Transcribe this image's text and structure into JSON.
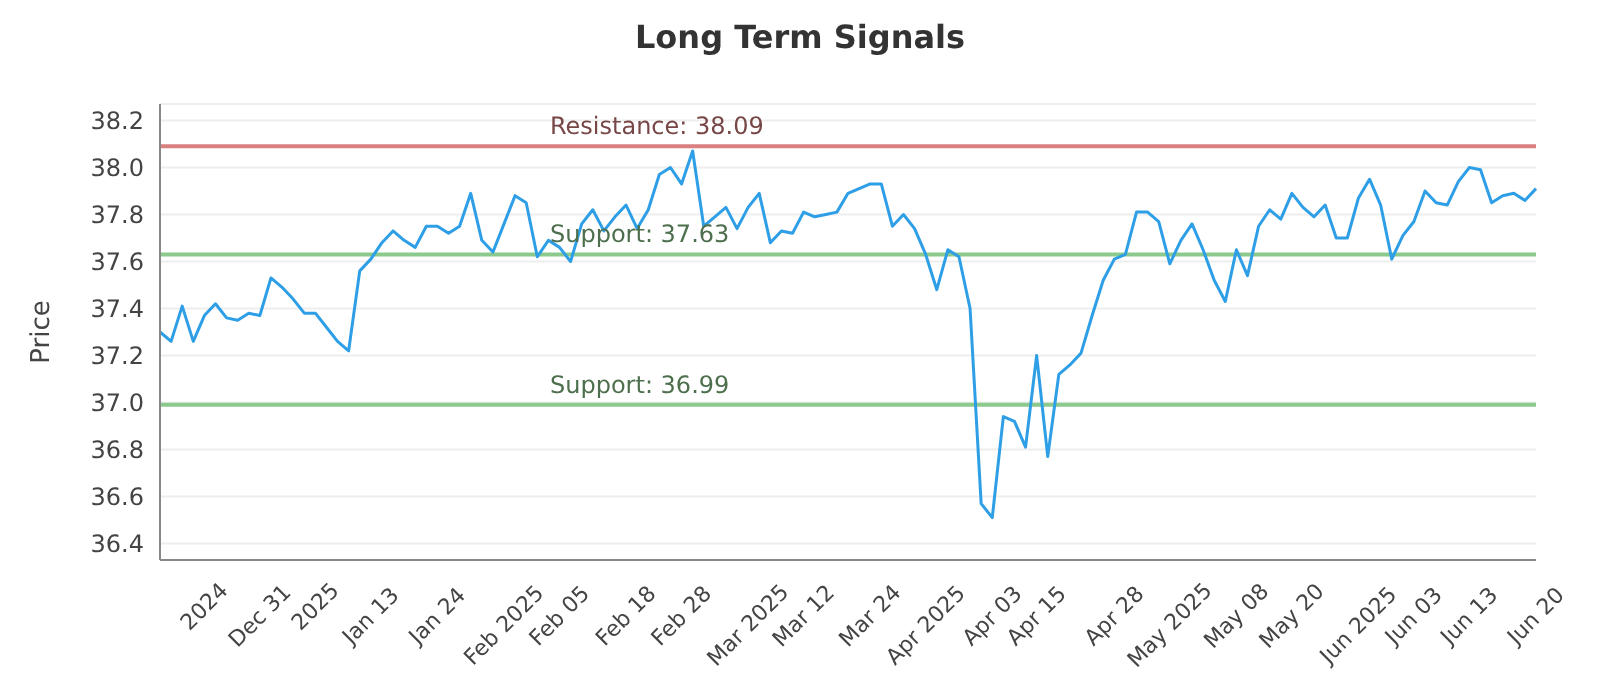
{
  "chart_data": {
    "type": "line",
    "title": "Long Term Signals",
    "ylabel": "Price",
    "categories": [
      null,
      null,
      null,
      null,
      "2024",
      null,
      null,
      null,
      null,
      "Dec 31",
      null,
      null,
      null,
      null,
      "2025",
      null,
      null,
      null,
      null,
      "Jan 13",
      null,
      null,
      null,
      null,
      null,
      "Jan 24",
      null,
      null,
      null,
      null,
      null,
      "Feb 2025",
      null,
      null,
      null,
      null,
      "Feb 05",
      null,
      null,
      null,
      null,
      null,
      "Feb 18",
      null,
      null,
      null,
      null,
      "Feb 28",
      null,
      null,
      null,
      null,
      null,
      "Mar 2025",
      null,
      null,
      null,
      null,
      "Mar 12",
      null,
      null,
      null,
      null,
      null,
      "Mar 24",
      null,
      null,
      null,
      null,
      "Apr 2025",
      null,
      null,
      null,
      null,
      null,
      "Apr 03",
      null,
      null,
      null,
      "Apr 15",
      null,
      null,
      null,
      null,
      null,
      null,
      "Apr 28",
      null,
      null,
      null,
      null,
      "May 2025",
      null,
      null,
      null,
      null,
      null,
      "May 08",
      null,
      null,
      null,
      null,
      "May 20",
      null,
      null,
      null,
      null,
      null,
      "Jun 2025",
      null,
      null,
      null,
      null,
      "Jun 03",
      null,
      null,
      null,
      null,
      "Jun 13",
      null,
      null,
      null,
      null,
      null,
      "Jun 20"
    ],
    "series": [
      {
        "color": "#2e9fe6",
        "values": [
          37.3,
          37.26,
          37.41,
          37.26,
          37.37,
          37.42,
          37.36,
          37.35,
          37.38,
          37.37,
          37.53,
          37.49,
          37.44,
          37.38,
          37.38,
          37.32,
          37.26,
          37.22,
          37.56,
          37.61,
          37.68,
          37.73,
          37.69,
          37.66,
          37.75,
          37.75,
          37.72,
          37.75,
          37.89,
          37.69,
          37.64,
          37.76,
          37.88,
          37.85,
          37.62,
          37.69,
          37.66,
          37.6,
          37.76,
          37.82,
          37.73,
          37.79,
          37.84,
          37.74,
          37.82,
          37.97,
          38.0,
          37.93,
          38.07,
          37.75,
          37.79,
          37.83,
          37.74,
          37.83,
          37.89,
          37.68,
          37.73,
          37.72,
          37.81,
          37.79,
          37.8,
          37.81,
          37.89,
          37.91,
          37.93,
          37.93,
          37.75,
          37.8,
          37.74,
          37.63,
          37.48,
          37.65,
          37.62,
          37.4,
          36.57,
          36.51,
          36.94,
          36.92,
          36.81,
          37.2,
          36.77,
          37.12,
          37.16,
          37.21,
          37.37,
          37.52,
          37.61,
          37.63,
          37.81,
          37.81,
          37.77,
          37.59,
          37.69,
          37.76,
          37.65,
          37.52,
          37.43,
          37.65,
          37.54,
          37.75,
          37.82,
          37.78,
          37.89,
          37.83,
          37.79,
          37.84,
          37.7,
          37.7,
          37.87,
          37.95,
          37.84,
          37.61,
          37.71,
          37.77,
          37.9,
          37.85,
          37.84,
          37.94,
          38.0,
          37.99,
          37.85,
          37.88,
          37.89,
          37.86,
          37.91
        ]
      }
    ],
    "ylim": [
      36.33,
      38.27
    ],
    "yticks": [
      36.4,
      36.6,
      36.8,
      {
        "value": 37,
        "label": "37.0"
      },
      37.2,
      37.4,
      37.6,
      37.8,
      {
        "value": 38,
        "label": "38.0"
      },
      38.2
    ],
    "grid": "y",
    "marker": "none",
    "line_style": "solid",
    "ref_lines": [
      {
        "axis": "y",
        "value": 38.09,
        "label": "Resistance: 38.09",
        "color": "#d98080"
      },
      {
        "axis": "y",
        "value": 37.63,
        "label": "Support: 37.63",
        "color": "#8cc98c"
      },
      {
        "axis": "y",
        "value": 36.99,
        "label": "Support: 36.99",
        "color": "#8cc98c"
      }
    ]
  }
}
